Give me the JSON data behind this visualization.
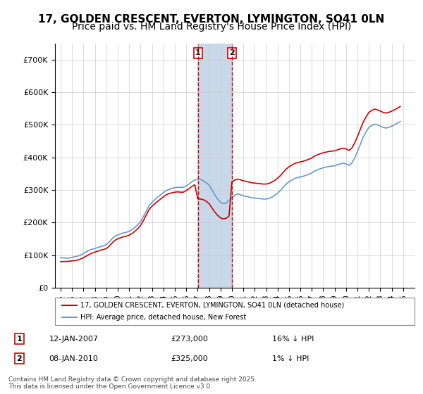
{
  "title1": "17, GOLDEN CRESCENT, EVERTON, LYMINGTON, SO41 0LN",
  "title2": "Price paid vs. HM Land Registry's House Price Index (HPI)",
  "title_fontsize": 11,
  "subtitle_fontsize": 10,
  "ylabel": "",
  "xlim_start": 1994.5,
  "xlim_end": 2026.0,
  "ylim_min": 0,
  "ylim_max": 750000,
  "sale1_date": 2007.033,
  "sale1_price": 273000,
  "sale1_label": "1",
  "sale2_date": 2010.022,
  "sale2_price": 325000,
  "sale2_label": "2",
  "red_line_color": "#cc0000",
  "blue_line_color": "#6699cc",
  "shade_color": "#c8d8e8",
  "legend_line1": "17, GOLDEN CRESCENT, EVERTON, LYMINGTON, SO41 0LN (detached house)",
  "legend_line2": "HPI: Average price, detached house, New Forest",
  "annotation1_num": "1",
  "annotation1_date": "12-JAN-2007",
  "annotation1_price": "£273,000",
  "annotation1_note": "16% ↓ HPI",
  "annotation2_num": "2",
  "annotation2_date": "08-JAN-2010",
  "annotation2_price": "£325,000",
  "annotation2_note": "1% ↓ HPI",
  "footer": "Contains HM Land Registry data © Crown copyright and database right 2025.\nThis data is licensed under the Open Government Licence v3.0.",
  "hpi_data_x": [
    1995.0,
    1995.25,
    1995.5,
    1995.75,
    1996.0,
    1996.25,
    1996.5,
    1996.75,
    1997.0,
    1997.25,
    1997.5,
    1997.75,
    1998.0,
    1998.25,
    1998.5,
    1998.75,
    1999.0,
    1999.25,
    1999.5,
    1999.75,
    2000.0,
    2000.25,
    2000.5,
    2000.75,
    2001.0,
    2001.25,
    2001.5,
    2001.75,
    2002.0,
    2002.25,
    2002.5,
    2002.75,
    2003.0,
    2003.25,
    2003.5,
    2003.75,
    2004.0,
    2004.25,
    2004.5,
    2004.75,
    2005.0,
    2005.25,
    2005.5,
    2005.75,
    2006.0,
    2006.25,
    2006.5,
    2006.75,
    2007.0,
    2007.25,
    2007.5,
    2007.75,
    2008.0,
    2008.25,
    2008.5,
    2008.75,
    2009.0,
    2009.25,
    2009.5,
    2009.75,
    2010.0,
    2010.25,
    2010.5,
    2010.75,
    2011.0,
    2011.25,
    2011.5,
    2011.75,
    2012.0,
    2012.25,
    2012.5,
    2012.75,
    2013.0,
    2013.25,
    2013.5,
    2013.75,
    2014.0,
    2014.25,
    2014.5,
    2014.75,
    2015.0,
    2015.25,
    2015.5,
    2015.75,
    2016.0,
    2016.25,
    2016.5,
    2016.75,
    2017.0,
    2017.25,
    2017.5,
    2017.75,
    2018.0,
    2018.25,
    2018.5,
    2018.75,
    2019.0,
    2019.25,
    2019.5,
    2019.75,
    2020.0,
    2020.25,
    2020.5,
    2020.75,
    2021.0,
    2021.25,
    2021.5,
    2021.75,
    2022.0,
    2022.25,
    2022.5,
    2022.75,
    2023.0,
    2023.25,
    2023.5,
    2023.75,
    2024.0,
    2024.25,
    2024.5,
    2024.75
  ],
  "hpi_data_y": [
    92000,
    91000,
    90500,
    91000,
    93000,
    95000,
    97000,
    100000,
    105000,
    110000,
    115000,
    118000,
    120000,
    123000,
    126000,
    128000,
    132000,
    140000,
    150000,
    158000,
    162000,
    165000,
    168000,
    170000,
    173000,
    178000,
    185000,
    193000,
    203000,
    218000,
    235000,
    252000,
    262000,
    270000,
    278000,
    285000,
    292000,
    298000,
    302000,
    305000,
    307000,
    308000,
    308000,
    308000,
    312000,
    318000,
    325000,
    330000,
    334000,
    332000,
    328000,
    322000,
    315000,
    300000,
    285000,
    272000,
    262000,
    258000,
    260000,
    268000,
    276000,
    283000,
    288000,
    285000,
    282000,
    280000,
    278000,
    276000,
    275000,
    274000,
    273000,
    272000,
    272000,
    274000,
    278000,
    283000,
    290000,
    298000,
    308000,
    318000,
    325000,
    330000,
    335000,
    338000,
    340000,
    342000,
    345000,
    348000,
    352000,
    358000,
    362000,
    365000,
    368000,
    370000,
    372000,
    373000,
    374000,
    377000,
    380000,
    382000,
    380000,
    375000,
    382000,
    398000,
    418000,
    440000,
    462000,
    478000,
    492000,
    498000,
    502000,
    500000,
    496000,
    492000,
    490000,
    492000,
    496000,
    500000,
    505000,
    510000
  ],
  "price_data_x": [
    1995.0,
    1995.25,
    1995.5,
    1995.75,
    1996.0,
    1996.25,
    1996.5,
    1996.75,
    1997.0,
    1997.25,
    1997.5,
    1997.75,
    1998.0,
    1998.25,
    1998.5,
    1998.75,
    1999.0,
    1999.25,
    1999.5,
    1999.75,
    2000.0,
    2000.25,
    2000.5,
    2000.75,
    2001.0,
    2001.25,
    2001.5,
    2001.75,
    2002.0,
    2002.25,
    2002.5,
    2002.75,
    2003.0,
    2003.25,
    2003.5,
    2003.75,
    2004.0,
    2004.25,
    2004.5,
    2004.75,
    2005.0,
    2005.25,
    2005.5,
    2005.75,
    2006.0,
    2006.25,
    2006.5,
    2006.75,
    2007.0,
    2007.25,
    2007.5,
    2007.75,
    2008.0,
    2008.25,
    2008.5,
    2008.75,
    2009.0,
    2009.25,
    2009.5,
    2009.75,
    2010.0,
    2010.25,
    2010.5,
    2010.75,
    2011.0,
    2011.25,
    2011.5,
    2011.75,
    2012.0,
    2012.25,
    2012.5,
    2012.75,
    2013.0,
    2013.25,
    2013.5,
    2013.75,
    2014.0,
    2014.25,
    2014.5,
    2014.75,
    2015.0,
    2015.25,
    2015.5,
    2015.75,
    2016.0,
    2016.25,
    2016.5,
    2016.75,
    2017.0,
    2017.25,
    2017.5,
    2017.75,
    2018.0,
    2018.25,
    2018.5,
    2018.75,
    2019.0,
    2019.25,
    2019.5,
    2019.75,
    2020.0,
    2020.25,
    2020.5,
    2020.75,
    2021.0,
    2021.25,
    2021.5,
    2021.75,
    2022.0,
    2022.25,
    2022.5,
    2022.75,
    2023.0,
    2023.25,
    2023.5,
    2023.75,
    2024.0,
    2024.25,
    2024.5,
    2024.75
  ],
  "price_data_y": [
    80000,
    80000,
    80500,
    81000,
    82000,
    83000,
    85000,
    88000,
    92000,
    97000,
    102000,
    106000,
    109000,
    112000,
    115000,
    117000,
    120000,
    127000,
    137000,
    145000,
    150000,
    153000,
    156000,
    158000,
    161000,
    166000,
    173000,
    181000,
    191000,
    206000,
    223000,
    240000,
    250000,
    258000,
    265000,
    272000,
    279000,
    285000,
    289000,
    291000,
    293000,
    294000,
    293000,
    293000,
    298000,
    304000,
    311000,
    316000,
    273000,
    272000,
    270000,
    265000,
    258000,
    245000,
    232000,
    222000,
    214000,
    211000,
    213000,
    220000,
    325000,
    330000,
    333000,
    331000,
    328000,
    326000,
    324000,
    322000,
    321000,
    320000,
    319000,
    318000,
    318000,
    320000,
    324000,
    329000,
    336000,
    344000,
    354000,
    364000,
    371000,
    376000,
    381000,
    384000,
    386000,
    388000,
    391000,
    394000,
    398000,
    404000,
    408000,
    411000,
    414000,
    416000,
    418000,
    419000,
    420000,
    423000,
    426000,
    428000,
    426000,
    421000,
    428000,
    444000,
    464000,
    486000,
    508000,
    524000,
    538000,
    544000,
    548000,
    546000,
    542000,
    538000,
    536000,
    538000,
    542000,
    546000,
    551000,
    556000
  ]
}
